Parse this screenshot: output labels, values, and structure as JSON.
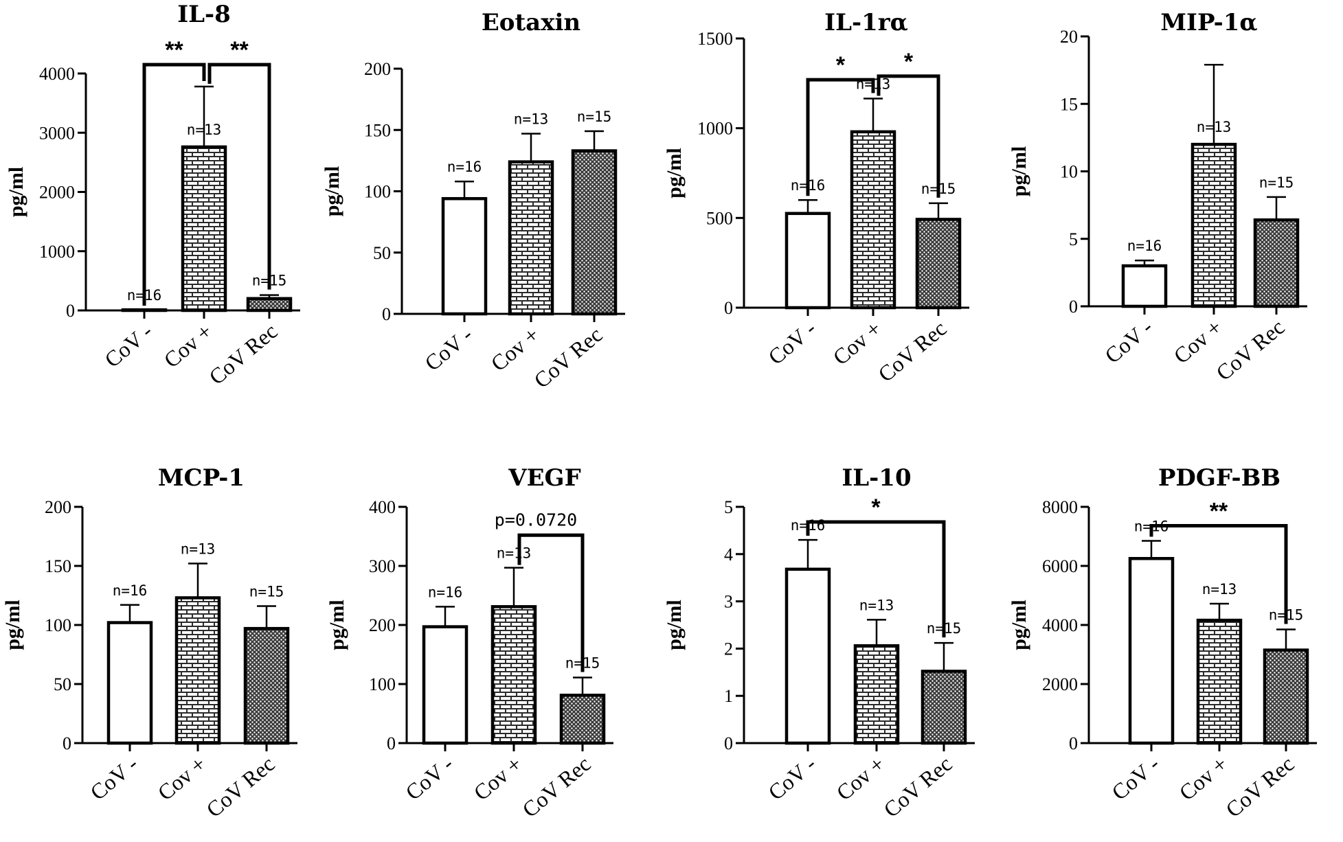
{
  "chart_data": [
    {
      "type": "bar",
      "title": "IL-8",
      "ylabel": "pg/ml",
      "ylim": [
        0,
        4000
      ],
      "yticks": [
        "0",
        "1000",
        "2000",
        "3000",
        "4000"
      ],
      "categories": [
        "CoV -",
        "Cov +",
        "CoV Rec"
      ],
      "values": [
        10,
        2760,
        200
      ],
      "errors": [
        0,
        1020,
        60
      ],
      "n_labels": [
        "n=16",
        "n=13",
        "n=15"
      ],
      "significance": [
        {
          "from": 0,
          "to": 1,
          "label": "**",
          "at": 4150
        },
        {
          "from": 1,
          "to": 2,
          "label": "**",
          "at": 4150
        }
      ]
    },
    {
      "type": "bar",
      "title": "Eotaxin",
      "ylabel": "pg/ml",
      "ylim": [
        0,
        200
      ],
      "yticks": [
        "0",
        "50",
        "100",
        "150",
        "200"
      ],
      "categories": [
        "CoV -",
        "Cov +",
        "CoV Rec"
      ],
      "values": [
        94,
        124,
        133
      ],
      "errors": [
        14,
        23,
        16
      ],
      "n_labels": [
        "n=16",
        "n=13",
        "n=15"
      ],
      "significance": []
    },
    {
      "type": "bar",
      "title": "IL-1rα",
      "ylabel": "pg/ml",
      "ylim": [
        0,
        1500
      ],
      "yticks": [
        "0",
        "500",
        "1000",
        "1500"
      ],
      "categories": [
        "CoV -",
        "Cov +",
        "CoV Rec"
      ],
      "values": [
        525,
        980,
        492
      ],
      "errors": [
        75,
        185,
        90
      ],
      "n_labels": [
        "n=16",
        "n=13",
        "n=15"
      ],
      "significance": [
        {
          "from": 0,
          "to": 1,
          "label": "*",
          "at": 1270
        },
        {
          "from": 1,
          "to": 2,
          "label": "*",
          "at": 1290
        }
      ]
    },
    {
      "type": "bar",
      "title": "MIP-1α",
      "ylabel": "pg/ml",
      "ylim": [
        0,
        20
      ],
      "yticks": [
        "0",
        "5",
        "10",
        "15",
        "20"
      ],
      "categories": [
        "CoV -",
        "Cov +",
        "CoV Rec"
      ],
      "values": [
        3.0,
        12.0,
        6.4
      ],
      "errors": [
        0.4,
        5.9,
        1.7
      ],
      "n_labels": [
        "n=16",
        "n=13",
        "n=15"
      ],
      "significance": []
    },
    {
      "type": "bar",
      "title": "MCP-1",
      "ylabel": "pg/ml",
      "ylim": [
        0,
        200
      ],
      "yticks": [
        "0",
        "50",
        "100",
        "150",
        "200"
      ],
      "categories": [
        "CoV -",
        "Cov +",
        "CoV Rec"
      ],
      "values": [
        102,
        123,
        97
      ],
      "errors": [
        15,
        29,
        19
      ],
      "n_labels": [
        "n=16",
        "n=13",
        "n=15"
      ],
      "significance": []
    },
    {
      "type": "bar",
      "title": "VEGF",
      "ylabel": "pg/ml",
      "ylim": [
        0,
        400
      ],
      "yticks": [
        "0",
        "100",
        "200",
        "300",
        "400"
      ],
      "categories": [
        "CoV -",
        "Cov +",
        "CoV Rec"
      ],
      "values": [
        197,
        231,
        81
      ],
      "errors": [
        34,
        66,
        30
      ],
      "n_labels": [
        "n=16",
        "n=13",
        "n=15"
      ],
      "significance": [
        {
          "from": 1,
          "to": 2,
          "label": "p=0.0720",
          "at": 352
        }
      ]
    },
    {
      "type": "bar",
      "title": "IL-10",
      "ylabel": "pg/ml",
      "ylim": [
        0,
        5
      ],
      "yticks": [
        "0",
        "1",
        "2",
        "3",
        "4",
        "5"
      ],
      "categories": [
        "CoV -",
        "Cov +",
        "CoV Rec"
      ],
      "values": [
        3.68,
        2.06,
        1.52
      ],
      "errors": [
        0.62,
        0.55,
        0.6
      ],
      "n_labels": [
        "n=16",
        "n=13",
        "n=15"
      ],
      "significance": [
        {
          "from": 0,
          "to": 2,
          "label": "*",
          "at": 4.68
        }
      ]
    },
    {
      "type": "bar",
      "title": "PDGF-BB",
      "ylabel": "pg/ml",
      "ylim": [
        0,
        8000
      ],
      "yticks": [
        "0",
        "2000",
        "4000",
        "6000",
        "8000"
      ],
      "categories": [
        "CoV -",
        "Cov +",
        "CoV Rec"
      ],
      "values": [
        6250,
        4160,
        3150
      ],
      "errors": [
        600,
        560,
        700
      ],
      "n_labels": [
        "n=16",
        "n=13",
        "n=15"
      ],
      "significance": [
        {
          "from": 0,
          "to": 2,
          "label": "**",
          "at": 7360
        }
      ]
    }
  ]
}
